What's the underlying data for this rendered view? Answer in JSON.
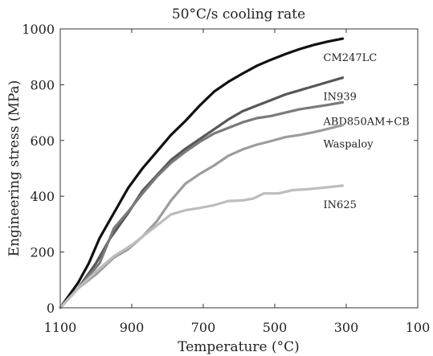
{
  "chart_data": {
    "type": "line",
    "title": "50°C/s cooling rate",
    "xlabel": "Temperature (°C)",
    "ylabel": "Engineering stress (MPa)",
    "xlim": [
      1100,
      100
    ],
    "ylim": [
      0,
      1000
    ],
    "x_reversed": true,
    "xticks": [
      1100,
      900,
      700,
      500,
      300,
      100
    ],
    "yticks": [
      0,
      200,
      400,
      600,
      800,
      1000
    ],
    "grid": false,
    "legend": "labels placed next to line ends",
    "series": [
      {
        "name": "CM247LC",
        "color": "#111111",
        "points": [
          [
            1100,
            0
          ],
          [
            1050,
            90
          ],
          [
            1020,
            160
          ],
          [
            990,
            250
          ],
          [
            950,
            340
          ],
          [
            910,
            430
          ],
          [
            870,
            500
          ],
          [
            830,
            560
          ],
          [
            790,
            620
          ],
          [
            750,
            670
          ],
          [
            710,
            725
          ],
          [
            670,
            775
          ],
          [
            630,
            810
          ],
          [
            590,
            840
          ],
          [
            550,
            868
          ],
          [
            510,
            890
          ],
          [
            470,
            910
          ],
          [
            430,
            928
          ],
          [
            390,
            943
          ],
          [
            350,
            955
          ],
          [
            310,
            965
          ]
        ]
      },
      {
        "name": "IN939",
        "color": "#575757",
        "points": [
          [
            1100,
            0
          ],
          [
            1050,
            70
          ],
          [
            1000,
            160
          ],
          [
            960,
            250
          ],
          [
            910,
            340
          ],
          [
            870,
            420
          ],
          [
            830,
            475
          ],
          [
            790,
            530
          ],
          [
            750,
            570
          ],
          [
            710,
            605
          ],
          [
            670,
            640
          ],
          [
            630,
            675
          ],
          [
            590,
            705
          ],
          [
            550,
            725
          ],
          [
            510,
            745
          ],
          [
            470,
            765
          ],
          [
            430,
            780
          ],
          [
            390,
            795
          ],
          [
            350,
            810
          ],
          [
            310,
            825
          ]
        ]
      },
      {
        "name": "ABD850AM+CB",
        "color": "#7a7a7a",
        "points": [
          [
            1100,
            0
          ],
          [
            1050,
            70
          ],
          [
            990,
            160
          ],
          [
            950,
            285
          ],
          [
            910,
            345
          ],
          [
            870,
            410
          ],
          [
            830,
            470
          ],
          [
            790,
            520
          ],
          [
            750,
            560
          ],
          [
            710,
            595
          ],
          [
            670,
            625
          ],
          [
            630,
            645
          ],
          [
            590,
            665
          ],
          [
            550,
            680
          ],
          [
            510,
            688
          ],
          [
            470,
            700
          ],
          [
            430,
            712
          ],
          [
            390,
            720
          ],
          [
            350,
            728
          ],
          [
            310,
            737
          ]
        ]
      },
      {
        "name": "Waspaloy",
        "color": "#9c9c9c",
        "points": [
          [
            1100,
            0
          ],
          [
            1050,
            70
          ],
          [
            1000,
            120
          ],
          [
            950,
            180
          ],
          [
            910,
            210
          ],
          [
            870,
            255
          ],
          [
            830,
            310
          ],
          [
            790,
            385
          ],
          [
            750,
            445
          ],
          [
            710,
            480
          ],
          [
            670,
            510
          ],
          [
            630,
            545
          ],
          [
            590,
            568
          ],
          [
            550,
            585
          ],
          [
            510,
            598
          ],
          [
            470,
            612
          ],
          [
            430,
            620
          ],
          [
            390,
            630
          ],
          [
            350,
            642
          ],
          [
            310,
            655
          ]
        ]
      },
      {
        "name": "IN625",
        "color": "#bdbdbd",
        "points": [
          [
            1100,
            0
          ],
          [
            1050,
            70
          ],
          [
            1000,
            130
          ],
          [
            950,
            185
          ],
          [
            900,
            225
          ],
          [
            860,
            265
          ],
          [
            820,
            305
          ],
          [
            790,
            335
          ],
          [
            750,
            350
          ],
          [
            710,
            358
          ],
          [
            670,
            368
          ],
          [
            630,
            383
          ],
          [
            590,
            385
          ],
          [
            560,
            392
          ],
          [
            530,
            410
          ],
          [
            490,
            410
          ],
          [
            450,
            422
          ],
          [
            410,
            425
          ],
          [
            370,
            430
          ],
          [
            310,
            438
          ]
        ]
      }
    ]
  }
}
